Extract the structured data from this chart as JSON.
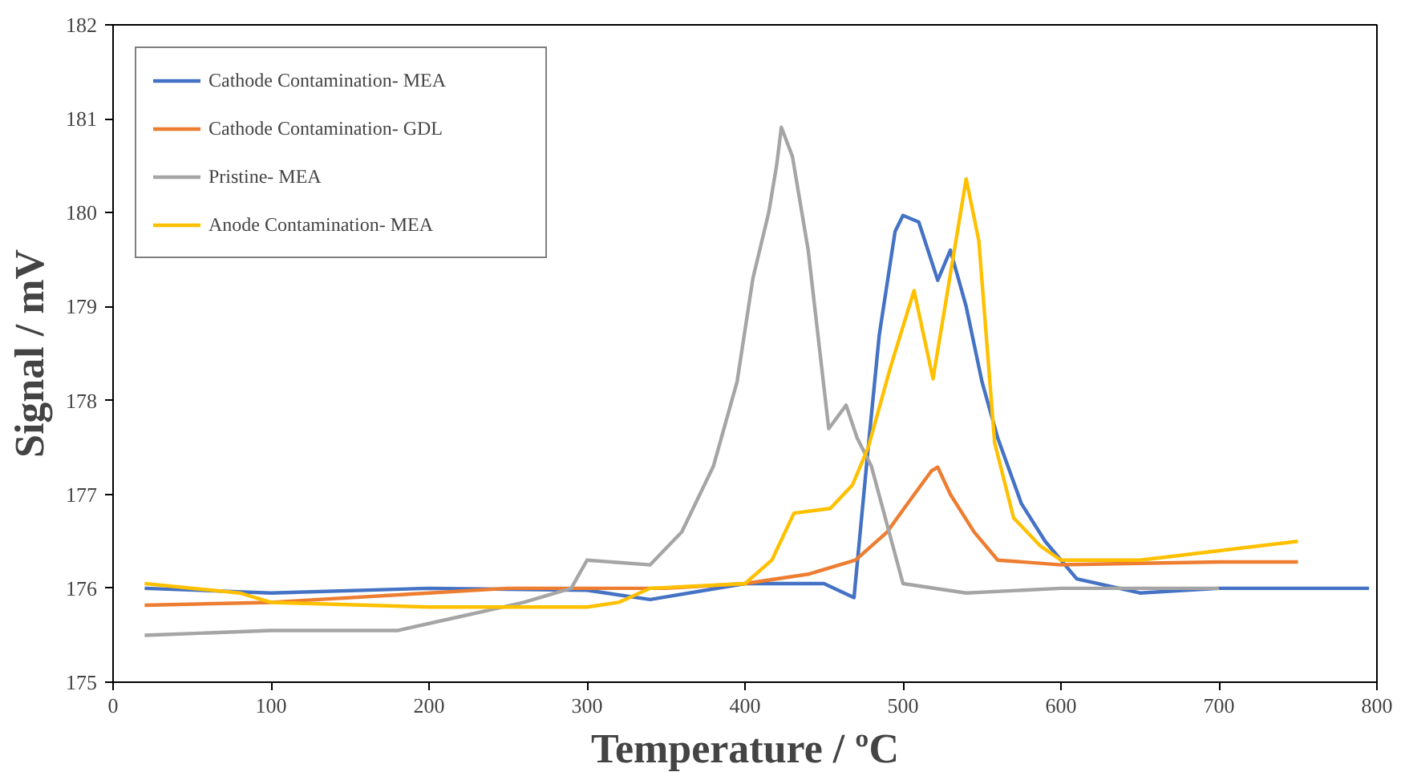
{
  "chart_data": {
    "type": "line",
    "xlabel": "Temperature / ºC",
    "ylabel": "Signal / mV",
    "xlim": [
      0,
      800
    ],
    "ylim": [
      175,
      182
    ],
    "xticks": [
      0,
      100,
      200,
      300,
      400,
      500,
      600,
      700,
      800
    ],
    "yticks": [
      175,
      176,
      177,
      178,
      179,
      180,
      181,
      182
    ],
    "grid": false,
    "legend": "top left",
    "marker": "none",
    "line_style": "solid",
    "series": [
      {
        "name": "Cathode Contamination- MEA",
        "color": "#4472c4",
        "x": [
          20,
          100,
          200,
          300,
          340,
          400,
          450,
          469,
          478,
          485,
          495,
          500,
          510,
          522,
          530,
          540,
          550,
          560,
          575,
          590,
          610,
          650,
          700,
          750,
          795
        ],
        "values": [
          176.0,
          175.95,
          176.0,
          175.98,
          175.88,
          176.05,
          176.05,
          175.9,
          177.5,
          178.7,
          179.8,
          179.97,
          179.9,
          179.28,
          179.6,
          179.0,
          178.2,
          177.6,
          176.9,
          176.5,
          176.1,
          175.95,
          176.0,
          176.0,
          176.0
        ]
      },
      {
        "name": "Cathode Contamination- GDL",
        "color": "#ed7d31",
        "x": [
          20,
          100,
          200,
          250,
          350,
          400,
          440,
          470,
          490,
          505,
          518,
          522,
          530,
          545,
          560,
          600,
          700,
          750
        ],
        "values": [
          175.82,
          175.85,
          175.95,
          176.0,
          176.0,
          176.05,
          176.15,
          176.3,
          176.6,
          176.95,
          177.25,
          177.29,
          177.0,
          176.6,
          176.3,
          176.25,
          176.28,
          176.28
        ]
      },
      {
        "name": "Pristine- MEA",
        "color": "#a5a5a5",
        "x": [
          20,
          100,
          180,
          220,
          260,
          290,
          300,
          340,
          360,
          380,
          395,
          405,
          415,
          420,
          423,
          430,
          440,
          453,
          464,
          471,
          480,
          500,
          540,
          600,
          700
        ],
        "values": [
          175.5,
          175.55,
          175.55,
          175.7,
          175.85,
          176.0,
          176.3,
          176.25,
          176.6,
          177.3,
          178.2,
          179.3,
          180.0,
          180.5,
          180.91,
          180.6,
          179.6,
          177.7,
          177.95,
          177.6,
          177.3,
          176.05,
          175.95,
          176.0,
          176.0
        ]
      },
      {
        "name": "Anode Contamination- MEA",
        "color": "#ffc000",
        "x": [
          20,
          80,
          100,
          200,
          300,
          320,
          340,
          400,
          417,
          431,
          454,
          468,
          478,
          492,
          507,
          519,
          540,
          548,
          558,
          570,
          587,
          600,
          650,
          700,
          750
        ],
        "values": [
          176.05,
          175.95,
          175.85,
          175.8,
          175.8,
          175.85,
          176.0,
          176.05,
          176.3,
          176.8,
          176.85,
          177.1,
          177.5,
          178.35,
          179.17,
          178.23,
          180.36,
          179.7,
          177.55,
          176.75,
          176.45,
          176.3,
          176.3,
          176.4,
          176.5
        ]
      }
    ]
  }
}
